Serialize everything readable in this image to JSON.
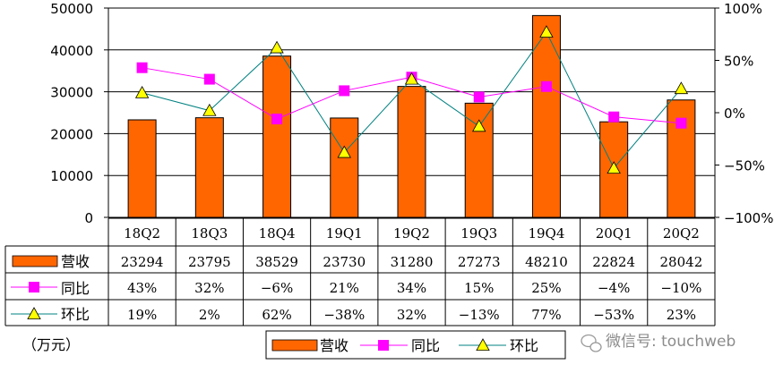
{
  "chart_data": {
    "type": "bar",
    "categories": [
      "18Q2",
      "18Q3",
      "18Q4",
      "19Q1",
      "19Q2",
      "19Q3",
      "19Q4",
      "20Q1",
      "20Q2"
    ],
    "series": [
      {
        "name": "营收",
        "type": "bar",
        "axis": "left",
        "color": "#ff6600",
        "values": [
          23294,
          23795,
          38529,
          23730,
          31280,
          27273,
          48210,
          22824,
          28042
        ]
      },
      {
        "name": "同比",
        "type": "line",
        "axis": "right",
        "color": "#ff00ff",
        "values": [
          43,
          32,
          -6,
          21,
          34,
          15,
          25,
          -4,
          -10
        ],
        "labels": [
          "43%",
          "32%",
          "-6%",
          "21%",
          "34%",
          "15%",
          "25%",
          "-4%",
          "-10%"
        ]
      },
      {
        "name": "环比",
        "type": "line",
        "axis": "right",
        "color": "#ffff00",
        "line_color": "#008080",
        "values": [
          19,
          2,
          62,
          -38,
          32,
          -13,
          77,
          -53,
          23
        ],
        "labels": [
          "19%",
          "2%",
          "62%",
          "-38%",
          "32%",
          "-13%",
          "77%",
          "-53%",
          "23%"
        ]
      }
    ],
    "ylim": [
      0,
      50000
    ],
    "y_ticks": [
      "0",
      "10000",
      "20000",
      "30000",
      "40000",
      "50000"
    ],
    "y2lim": [
      -100,
      100
    ],
    "y2_ticks": [
      "-100%",
      "-50%",
      "0%",
      "50%",
      "100%"
    ],
    "grid": true,
    "legend": "bottom",
    "unit_label": "（万元）"
  },
  "watermark": "微信号: touchweb"
}
